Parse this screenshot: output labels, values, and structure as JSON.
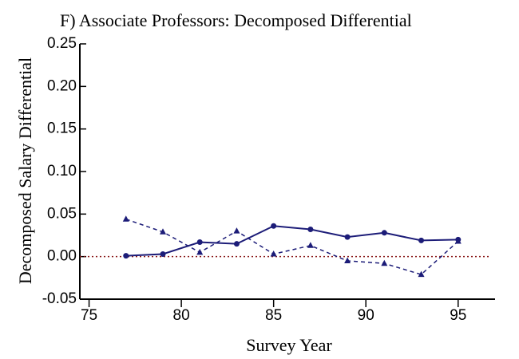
{
  "chart_data": {
    "type": "line",
    "title": "F)  Associate Professors:  Decomposed Differential",
    "xlabel": "Survey Year",
    "ylabel": "Decomposed Salary Differential",
    "x": [
      77,
      79,
      81,
      83,
      85,
      87,
      89,
      91,
      93,
      95
    ],
    "series": [
      {
        "color": "#1c1c78",
        "dash": false,
        "marker": "circle",
        "values": [
          0.001,
          0.003,
          0.017,
          0.015,
          0.036,
          0.032,
          0.023,
          0.028,
          0.019,
          0.02
        ]
      },
      {
        "color": "#1c1c78",
        "dash": true,
        "marker": "triangle",
        "values": [
          0.044,
          0.029,
          0.005,
          0.03,
          0.003,
          0.013,
          -0.005,
          -0.008,
          -0.021,
          0.018
        ]
      }
    ],
    "hline": 0,
    "hline_color": "#8b1a1a",
    "xlim": [
      74.5,
      97
    ],
    "xticks": [
      75,
      80,
      85,
      90,
      95
    ],
    "ylim": [
      -0.05,
      0.25
    ],
    "yticks": [
      {
        "value": -0.05,
        "label": "-0.05"
      },
      {
        "value": 0,
        "label": "0.00"
      },
      0.05,
      {
        "value": 0.1,
        "label": "0.10"
      },
      0.15,
      {
        "value": 0.2,
        "label": "0.20"
      },
      0.25
    ]
  }
}
